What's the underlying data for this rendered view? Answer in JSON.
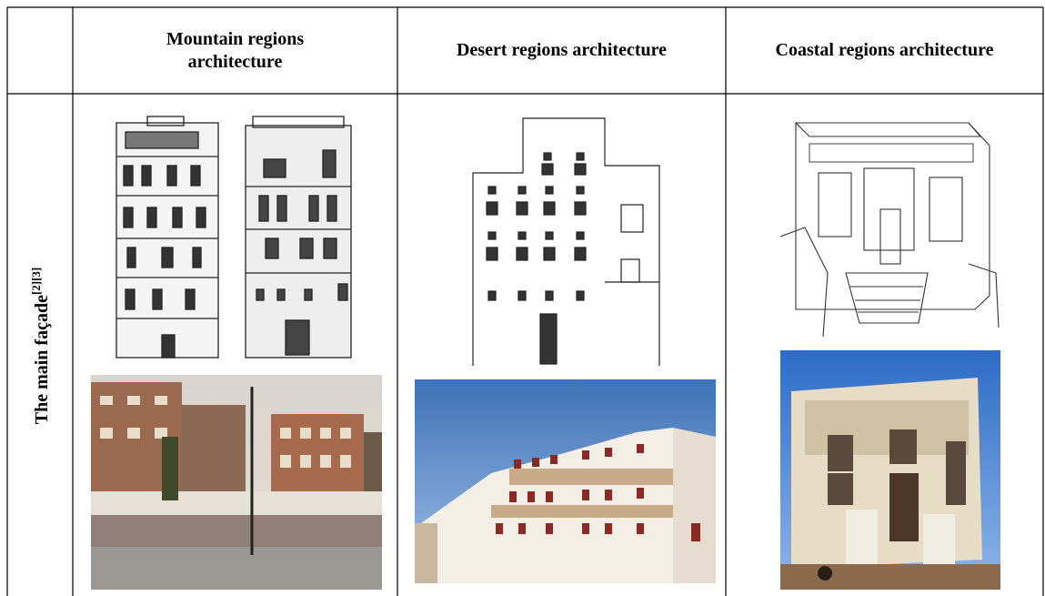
{
  "table": {
    "header": [
      "Mountain regions architecture",
      "Desert regions architecture",
      "Coastal regions architecture"
    ],
    "rows": [
      {
        "label": "The main façade",
        "label_refs": "[2][3]"
      }
    ]
  }
}
